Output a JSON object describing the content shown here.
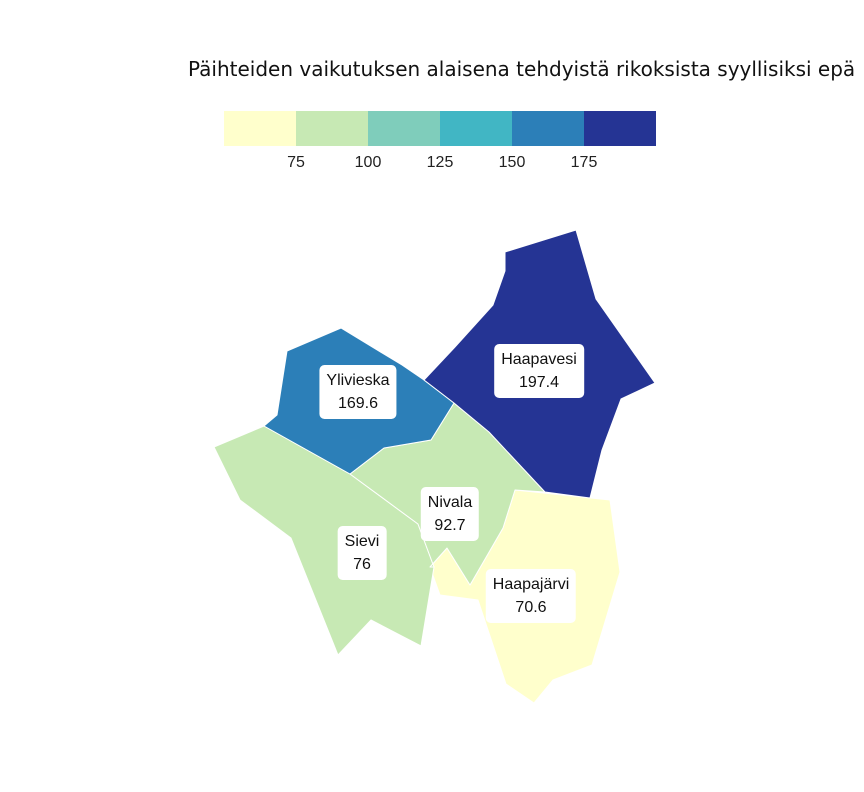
{
  "title": "Päihteiden vaikutuksen alaisena tehdyistä rikoksista syyllisiksi epä",
  "legend": {
    "breaks": [
      "75",
      "100",
      "125",
      "150",
      "175"
    ],
    "colors": [
      "#ffffcc",
      "#c7e9b4",
      "#7fcdbb",
      "#41b6c4",
      "#2c7fb8",
      "#253494"
    ]
  },
  "regions": [
    {
      "name": "Haapavesi",
      "value": "197.4",
      "color": "#253494"
    },
    {
      "name": "Ylivieska",
      "value": "169.6",
      "color": "#2c7fb8"
    },
    {
      "name": "Nivala",
      "value": "92.7",
      "color": "#c7e9b4"
    },
    {
      "name": "Sievi",
      "value": "76",
      "color": "#c7e9b4"
    },
    {
      "name": "Haapajärvi",
      "value": "70.6",
      "color": "#ffffcc"
    }
  ]
}
